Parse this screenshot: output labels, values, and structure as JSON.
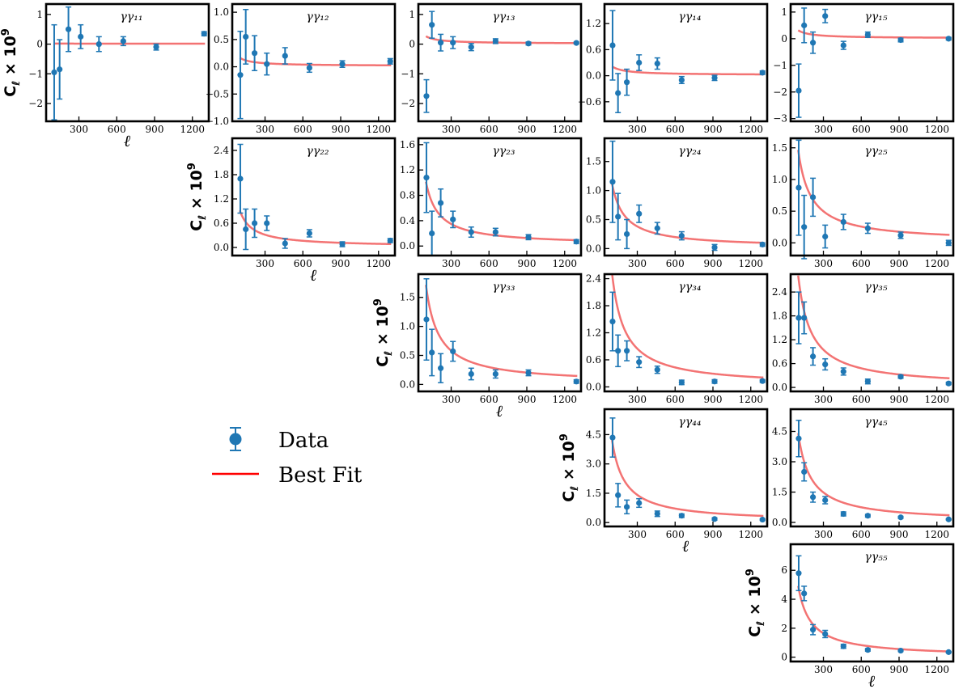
{
  "legend": {
    "data_label": "Data",
    "fit_label": "Best Fit",
    "data_color": "#1f77b4",
    "fit_color": "#ff0000"
  },
  "ylabel_text": "C",
  "ylabel_sub": "ℓ",
  "ylabel_times": "× 10",
  "ylabel_exp": "9",
  "xlabel_text": "ℓ",
  "colors": {
    "data": "#1f77b4",
    "fit": "#f26b6b"
  },
  "chart_data": [
    {
      "type": "scatter",
      "title": "γγ₁₁",
      "xlim": [
        40,
        1330
      ],
      "ylim": [
        -2.6,
        1.35
      ],
      "yticks": [
        -2,
        -1,
        0,
        1
      ],
      "ytick_labels": [
        "−2",
        "−1",
        "0",
        "1"
      ],
      "xticks": [
        300,
        600,
        900,
        1200
      ],
      "xtick_labels": [
        "300",
        "600",
        "900",
        "1200"
      ],
      "show_xlabel": true,
      "show_ylabel": true,
      "points": [
        [
          104,
          -0.95,
          1.6
        ],
        [
          147,
          -0.85,
          1.0
        ],
        [
          217,
          0.5,
          0.75
        ],
        [
          314,
          0.25,
          0.4
        ],
        [
          459,
          0.0,
          0.25
        ],
        [
          652,
          0.1,
          0.15
        ],
        [
          913,
          -0.1,
          0.1
        ],
        [
          1293,
          0.35,
          0.07
        ]
      ],
      "fit_a": 0.5
    },
    {
      "type": "scatter",
      "title": "γγ₁₂",
      "xlim": [
        40,
        1330
      ],
      "ylim": [
        -1.0,
        1.15
      ],
      "yticks": [
        -1.0,
        -0.5,
        0.0,
        0.5,
        1.0
      ],
      "ytick_labels": [
        "−1.0",
        "−0.5",
        "0.0",
        "0.5",
        "1.0"
      ],
      "xticks": [
        300,
        600,
        900,
        1200
      ],
      "xtick_labels": [
        "300",
        "600",
        "900",
        "1200"
      ],
      "show_xlabel": false,
      "show_ylabel": false,
      "points": [
        [
          104,
          -0.15,
          0.8
        ],
        [
          147,
          0.55,
          0.5
        ],
        [
          217,
          0.25,
          0.32
        ],
        [
          314,
          0.05,
          0.2
        ],
        [
          459,
          0.2,
          0.15
        ],
        [
          652,
          -0.02,
          0.08
        ],
        [
          913,
          0.05,
          0.06
        ],
        [
          1293,
          0.1,
          0.05
        ]
      ],
      "fit_a": 15
    },
    {
      "type": "scatter",
      "title": "γγ₁₃",
      "xlim": [
        40,
        1330
      ],
      "ylim": [
        -2.6,
        1.35
      ],
      "yticks": [
        -2,
        -1,
        0,
        1
      ],
      "ytick_labels": [
        "−2",
        "−1",
        "0",
        "1"
      ],
      "xticks": [
        300,
        600,
        900,
        1200
      ],
      "xtick_labels": [
        "300",
        "600",
        "900",
        "1200"
      ],
      "show_xlabel": false,
      "show_ylabel": false,
      "points": [
        [
          104,
          -1.75,
          0.55
        ],
        [
          147,
          0.65,
          0.45
        ],
        [
          217,
          0.05,
          0.28
        ],
        [
          314,
          0.05,
          0.2
        ],
        [
          459,
          -0.1,
          0.12
        ],
        [
          652,
          0.1,
          0.08
        ],
        [
          913,
          0.02,
          0.05
        ],
        [
          1293,
          0.04,
          0.03
        ]
      ],
      "fit_a": 25
    },
    {
      "type": "scatter",
      "title": "γγ₁₄",
      "xlim": [
        40,
        1330
      ],
      "ylim": [
        -1.05,
        1.65
      ],
      "yticks": [
        -0.6,
        0.0,
        0.6,
        1.2
      ],
      "ytick_labels": [
        "−0.6",
        "0.0",
        "0.6",
        "1.2"
      ],
      "xticks": [
        300,
        600,
        900,
        1200
      ],
      "xtick_labels": [
        "300",
        "600",
        "900",
        "1200"
      ],
      "show_xlabel": false,
      "show_ylabel": false,
      "points": [
        [
          104,
          0.7,
          0.8
        ],
        [
          147,
          -0.4,
          0.45
        ],
        [
          217,
          -0.15,
          0.3
        ],
        [
          314,
          0.3,
          0.18
        ],
        [
          459,
          0.28,
          0.13
        ],
        [
          652,
          -0.1,
          0.08
        ],
        [
          913,
          -0.05,
          0.06
        ],
        [
          1293,
          0.07,
          0.04
        ]
      ],
      "fit_a": 20
    },
    {
      "type": "scatter",
      "title": "γγ₁₅",
      "xlim": [
        40,
        1330
      ],
      "ylim": [
        -3.1,
        1.3
      ],
      "yticks": [
        -3,
        -2,
        -1,
        0,
        1
      ],
      "ytick_labels": [
        "−3",
        "−2",
        "−1",
        "0",
        "1"
      ],
      "xticks": [
        300,
        600,
        900,
        1200
      ],
      "xtick_labels": [
        "300",
        "600",
        "900",
        "1200"
      ],
      "show_xlabel": false,
      "show_ylabel": false,
      "points": [
        [
          104,
          -1.95,
          1.0
        ],
        [
          147,
          0.5,
          0.65
        ],
        [
          217,
          -0.15,
          0.4
        ],
        [
          314,
          0.85,
          0.25
        ],
        [
          459,
          -0.25,
          0.15
        ],
        [
          652,
          0.15,
          0.1
        ],
        [
          913,
          -0.05,
          0.07
        ],
        [
          1293,
          0.0,
          0.05
        ]
      ],
      "fit_a": 30
    },
    {
      "type": "scatter",
      "title": "γγ₂₂",
      "xlim": [
        40,
        1330
      ],
      "ylim": [
        -0.2,
        2.7
      ],
      "yticks": [
        0.0,
        0.6,
        1.2,
        1.8,
        2.4
      ],
      "ytick_labels": [
        "0.0",
        "0.6",
        "1.2",
        "1.8",
        "2.4"
      ],
      "xticks": [
        300,
        600,
        900,
        1200
      ],
      "xtick_labels": [
        "300",
        "600",
        "900",
        "1200"
      ],
      "show_xlabel": true,
      "show_ylabel": true,
      "points": [
        [
          104,
          1.7,
          0.85
        ],
        [
          147,
          0.45,
          0.5
        ],
        [
          217,
          0.6,
          0.35
        ],
        [
          314,
          0.6,
          0.18
        ],
        [
          459,
          0.1,
          0.12
        ],
        [
          652,
          0.35,
          0.09
        ],
        [
          913,
          0.08,
          0.06
        ],
        [
          1293,
          0.17,
          0.05
        ]
      ],
      "fit_a": 90
    },
    {
      "type": "scatter",
      "title": "γγ₂₃",
      "xlim": [
        40,
        1330
      ],
      "ylim": [
        -0.15,
        1.7
      ],
      "yticks": [
        0.0,
        0.4,
        0.8,
        1.2,
        1.6
      ],
      "ytick_labels": [
        "0.0",
        "0.4",
        "0.8",
        "1.2",
        "1.6"
      ],
      "xticks": [
        300,
        600,
        900,
        1200
      ],
      "xtick_labels": [
        "300",
        "600",
        "900",
        "1200"
      ],
      "show_xlabel": false,
      "show_ylabel": false,
      "points": [
        [
          104,
          1.08,
          0.55
        ],
        [
          147,
          0.2,
          0.35
        ],
        [
          217,
          0.68,
          0.22
        ],
        [
          314,
          0.42,
          0.13
        ],
        [
          459,
          0.22,
          0.08
        ],
        [
          652,
          0.22,
          0.06
        ],
        [
          913,
          0.14,
          0.04
        ],
        [
          1293,
          0.07,
          0.03
        ]
      ],
      "fit_a": 100
    },
    {
      "type": "scatter",
      "title": "γγ₂₄",
      "xlim": [
        40,
        1330
      ],
      "ylim": [
        -0.12,
        1.9
      ],
      "yticks": [
        0.0,
        0.5,
        1.0,
        1.5
      ],
      "ytick_labels": [
        "0.0",
        "0.5",
        "1.0",
        "1.5"
      ],
      "xticks": [
        300,
        600,
        900,
        1200
      ],
      "xtick_labels": [
        "300",
        "600",
        "900",
        "1200"
      ],
      "show_xlabel": false,
      "show_ylabel": false,
      "points": [
        [
          104,
          1.15,
          0.7
        ],
        [
          147,
          0.55,
          0.4
        ],
        [
          217,
          0.25,
          0.25
        ],
        [
          314,
          0.6,
          0.15
        ],
        [
          459,
          0.35,
          0.1
        ],
        [
          652,
          0.22,
          0.07
        ],
        [
          913,
          0.02,
          0.05
        ],
        [
          1293,
          0.07,
          0.03
        ]
      ],
      "fit_a": 110
    },
    {
      "type": "scatter",
      "title": "γγ₂₅",
      "xlim": [
        40,
        1330
      ],
      "ylim": [
        -0.2,
        1.65
      ],
      "yticks": [
        0.0,
        0.5,
        1.0,
        1.5
      ],
      "ytick_labels": [
        "0.0",
        "0.5",
        "1.0",
        "1.5"
      ],
      "xticks": [
        300,
        600,
        900,
        1200
      ],
      "xtick_labels": [
        "300",
        "600",
        "900",
        "1200"
      ],
      "show_xlabel": false,
      "show_ylabel": false,
      "points": [
        [
          104,
          0.87,
          0.75
        ],
        [
          147,
          0.25,
          0.5
        ],
        [
          217,
          0.72,
          0.3
        ],
        [
          314,
          0.1,
          0.18
        ],
        [
          459,
          0.33,
          0.12
        ],
        [
          652,
          0.23,
          0.08
        ],
        [
          913,
          0.12,
          0.05
        ],
        [
          1293,
          0.0,
          0.04
        ]
      ],
      "fit_a": 145
    },
    {
      "type": "scatter",
      "title": "γγ₃₃",
      "xlim": [
        40,
        1330
      ],
      "ylim": [
        -0.12,
        1.9
      ],
      "yticks": [
        0.0,
        0.5,
        1.0,
        1.5
      ],
      "ytick_labels": [
        "0.0",
        "0.5",
        "1.0",
        "1.5"
      ],
      "xticks": [
        300,
        600,
        900,
        1200
      ],
      "xtick_labels": [
        "300",
        "600",
        "900",
        "1200"
      ],
      "show_xlabel": true,
      "show_ylabel": true,
      "points": [
        [
          104,
          1.12,
          0.7
        ],
        [
          147,
          0.55,
          0.4
        ],
        [
          217,
          0.28,
          0.25
        ],
        [
          314,
          0.57,
          0.17
        ],
        [
          459,
          0.18,
          0.1
        ],
        [
          652,
          0.18,
          0.07
        ],
        [
          913,
          0.2,
          0.05
        ],
        [
          1293,
          0.05,
          0.03
        ]
      ],
      "fit_a": 170
    },
    {
      "type": "scatter",
      "title": "γγ₃₄",
      "xlim": [
        40,
        1330
      ],
      "ylim": [
        -0.1,
        2.5
      ],
      "yticks": [
        0.0,
        0.6,
        1.2,
        1.8,
        2.4
      ],
      "ytick_labels": [
        "0.0",
        "0.6",
        "1.2",
        "1.8",
        "2.4"
      ],
      "xticks": [
        300,
        600,
        900,
        1200
      ],
      "xtick_labels": [
        "300",
        "600",
        "900",
        "1200"
      ],
      "show_xlabel": false,
      "show_ylabel": false,
      "points": [
        [
          104,
          1.45,
          0.65
        ],
        [
          147,
          0.8,
          0.35
        ],
        [
          217,
          0.8,
          0.22
        ],
        [
          314,
          0.55,
          0.12
        ],
        [
          459,
          0.38,
          0.08
        ],
        [
          652,
          0.1,
          0.05
        ],
        [
          913,
          0.12,
          0.04
        ],
        [
          1293,
          0.13,
          0.03
        ]
      ],
      "fit_a": 250
    },
    {
      "type": "scatter",
      "title": "γγ₃₅",
      "xlim": [
        40,
        1330
      ],
      "ylim": [
        -0.1,
        2.85
      ],
      "yticks": [
        0.0,
        0.6,
        1.2,
        1.8,
        2.4
      ],
      "ytick_labels": [
        "0.0",
        "0.6",
        "1.2",
        "1.8",
        "2.4"
      ],
      "xticks": [
        300,
        600,
        900,
        1200
      ],
      "xtick_labels": [
        "300",
        "600",
        "900",
        "1200"
      ],
      "show_xlabel": false,
      "show_ylabel": false,
      "points": [
        [
          104,
          1.75,
          0.65
        ],
        [
          147,
          1.75,
          0.4
        ],
        [
          217,
          0.78,
          0.22
        ],
        [
          314,
          0.58,
          0.14
        ],
        [
          459,
          0.4,
          0.09
        ],
        [
          652,
          0.15,
          0.06
        ],
        [
          913,
          0.27,
          0.04
        ],
        [
          1293,
          0.1,
          0.03
        ]
      ],
      "fit_a": 280
    },
    {
      "type": "scatter",
      "title": "γγ₄₄",
      "xlim": [
        40,
        1330
      ],
      "ylim": [
        -0.2,
        5.8
      ],
      "yticks": [
        0.0,
        1.5,
        3.0,
        4.5
      ],
      "ytick_labels": [
        "0.0",
        "1.5",
        "3.0",
        "4.5"
      ],
      "xticks": [
        300,
        600,
        900,
        1200
      ],
      "xtick_labels": [
        "300",
        "600",
        "900",
        "1200"
      ],
      "show_xlabel": true,
      "show_ylabel": true,
      "points": [
        [
          104,
          4.35,
          1.0
        ],
        [
          147,
          1.4,
          0.6
        ],
        [
          217,
          0.8,
          0.35
        ],
        [
          314,
          1.0,
          0.22
        ],
        [
          459,
          0.45,
          0.14
        ],
        [
          652,
          0.35,
          0.09
        ],
        [
          913,
          0.18,
          0.06
        ],
        [
          1293,
          0.15,
          0.04
        ]
      ],
      "fit_a": 420
    },
    {
      "type": "scatter",
      "title": "γγ₄₅",
      "xlim": [
        40,
        1330
      ],
      "ylim": [
        -0.2,
        5.6
      ],
      "yticks": [
        0.0,
        1.5,
        3.0,
        4.5
      ],
      "ytick_labels": [
        "0.0",
        "1.5",
        "3.0",
        "4.5"
      ],
      "xticks": [
        300,
        600,
        900,
        1200
      ],
      "xtick_labels": [
        "300",
        "600",
        "900",
        "1200"
      ],
      "show_xlabel": false,
      "show_ylabel": false,
      "points": [
        [
          104,
          4.15,
          0.9
        ],
        [
          147,
          2.5,
          0.45
        ],
        [
          217,
          1.25,
          0.25
        ],
        [
          314,
          1.1,
          0.18
        ],
        [
          459,
          0.42,
          0.1
        ],
        [
          652,
          0.33,
          0.07
        ],
        [
          913,
          0.25,
          0.05
        ],
        [
          1293,
          0.15,
          0.03
        ]
      ],
      "fit_a": 440
    },
    {
      "type": "scatter",
      "title": "γγ₅₅",
      "xlim": [
        40,
        1330
      ],
      "ylim": [
        -0.3,
        7.8
      ],
      "yticks": [
        0,
        2,
        4,
        6
      ],
      "ytick_labels": [
        "0",
        "2",
        "4",
        "6"
      ],
      "xticks": [
        300,
        600,
        900,
        1200
      ],
      "xtick_labels": [
        "300",
        "600",
        "900",
        "1200"
      ],
      "show_xlabel": true,
      "show_ylabel": true,
      "points": [
        [
          104,
          5.8,
          1.2
        ],
        [
          147,
          4.4,
          0.5
        ],
        [
          217,
          1.9,
          0.35
        ],
        [
          314,
          1.6,
          0.25
        ],
        [
          459,
          0.75,
          0.14
        ],
        [
          652,
          0.5,
          0.09
        ],
        [
          913,
          0.45,
          0.06
        ],
        [
          1293,
          0.35,
          0.04
        ]
      ],
      "fit_a": 490
    }
  ]
}
